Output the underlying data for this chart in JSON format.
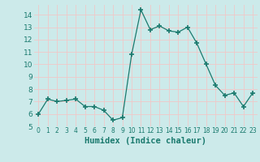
{
  "x": [
    0,
    1,
    2,
    3,
    4,
    5,
    6,
    7,
    8,
    9,
    10,
    11,
    12,
    13,
    14,
    15,
    16,
    17,
    18,
    19,
    20,
    21,
    22,
    23
  ],
  "y": [
    6.0,
    7.2,
    7.0,
    7.1,
    7.2,
    6.6,
    6.6,
    6.3,
    5.5,
    5.7,
    10.8,
    14.4,
    12.8,
    13.1,
    12.7,
    12.6,
    13.0,
    11.7,
    10.0,
    8.3,
    7.5,
    7.7,
    6.6,
    7.7
  ],
  "line_color": "#1a7a6e",
  "marker": "+",
  "marker_size": 4,
  "marker_lw": 1.2,
  "bg_color": "#cceaea",
  "grid_color": "#f0c8c8",
  "xlabel": "Humidex (Indice chaleur)",
  "xlabel_fontsize": 7.5,
  "tick_fontsize_x": 5.5,
  "tick_fontsize_y": 6.5,
  "xlim": [
    -0.5,
    23.5
  ],
  "ylim": [
    5,
    14.8
  ],
  "yticks": [
    5,
    6,
    7,
    8,
    9,
    10,
    11,
    12,
    13,
    14
  ],
  "xticks": [
    0,
    1,
    2,
    3,
    4,
    5,
    6,
    7,
    8,
    9,
    10,
    11,
    12,
    13,
    14,
    15,
    16,
    17,
    18,
    19,
    20,
    21,
    22,
    23
  ]
}
